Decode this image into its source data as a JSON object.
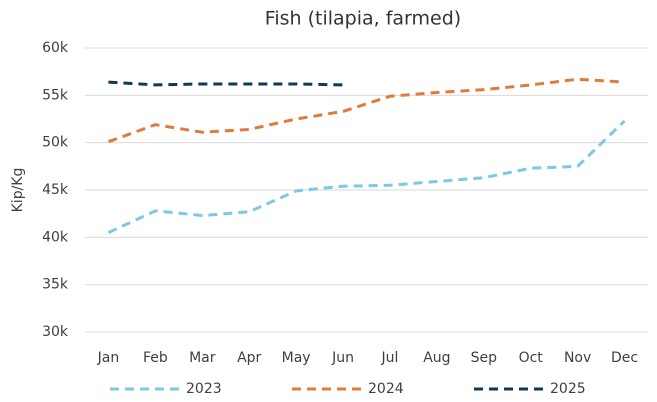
{
  "chart_data": {
    "type": "line",
    "title": "Fish (tilapia, farmed)",
    "y_label": "Kip/Kg",
    "categories": [
      "Jan",
      "Feb",
      "Mar",
      "Apr",
      "May",
      "Jun",
      "Jul",
      "Aug",
      "Sep",
      "Oct",
      "Nov",
      "Dec"
    ],
    "series": [
      {
        "name": "2023",
        "color": "#7ec8e3",
        "values": [
          40500,
          42800,
          42300,
          42700,
          44900,
          45400,
          45500,
          45900,
          46300,
          47300,
          47500,
          52300
        ]
      },
      {
        "name": "2024",
        "color": "#e07b39",
        "values": [
          50100,
          51900,
          51100,
          51400,
          52500,
          53300,
          54900,
          55300,
          55600,
          56100,
          56700,
          56400
        ]
      },
      {
        "name": "2025",
        "color": "#0e3a53",
        "values": [
          56400,
          56100,
          56200,
          56200,
          56200,
          56100,
          null,
          null,
          null,
          null,
          null,
          null
        ]
      }
    ],
    "ylim": [
      30000,
      60000
    ],
    "yticks": [
      {
        "value": 30000,
        "label": "30k"
      },
      {
        "value": 35000,
        "label": "35k"
      },
      {
        "value": 40000,
        "label": "40k"
      },
      {
        "value": 45000,
        "label": "45k"
      },
      {
        "value": 50000,
        "label": "50k"
      },
      {
        "value": 55000,
        "label": "55k"
      },
      {
        "value": 60000,
        "label": "60k"
      }
    ],
    "grid": true,
    "legend": "bottom",
    "dashed": true
  }
}
